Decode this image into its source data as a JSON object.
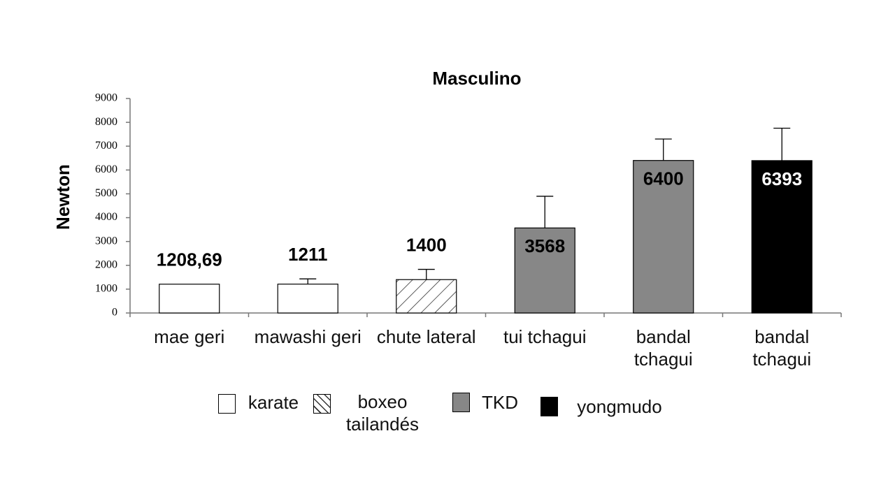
{
  "chart_data": {
    "type": "bar",
    "title": "Masculino",
    "y_label": "Newton",
    "categories": [
      "mae geri",
      "mawashi geri",
      "chute lateral",
      "tui tchagui",
      "bandal tchagui",
      "bandal tchagui"
    ],
    "series": [
      {
        "name": "karate",
        "color": "#ffffff",
        "label_position": "above",
        "label_color": "#000000",
        "values": [
          1208.69,
          1211,
          null,
          null,
          null,
          null
        ],
        "value_labels": [
          "1208,69",
          "1211",
          null,
          null,
          null,
          null
        ],
        "errors": [
          null,
          220,
          null,
          null,
          null,
          null
        ]
      },
      {
        "name": "boxeo tailandés",
        "color": "#ffffff",
        "pattern": "hatch",
        "label_position": "above",
        "label_color": "#000000",
        "values": [
          null,
          null,
          1400,
          null,
          null,
          null
        ],
        "errors": [
          null,
          null,
          430,
          null,
          null,
          null
        ]
      },
      {
        "name": "TKD",
        "color": "#878787",
        "label_position": "inside",
        "label_color": "#000000",
        "values": [
          null,
          null,
          null,
          3568,
          6400,
          null
        ],
        "errors": [
          null,
          null,
          null,
          1330,
          900,
          null
        ]
      },
      {
        "name": "yongmudo",
        "color": "#000000",
        "label_position": "inside",
        "label_color": "#ffffff",
        "values": [
          null,
          null,
          null,
          null,
          null,
          6393
        ],
        "errors": [
          null,
          null,
          null,
          null,
          null,
          1360
        ]
      }
    ],
    "ylim": [
      0,
      9000
    ],
    "yticks": [
      0,
      1000,
      2000,
      3000,
      4000,
      5000,
      6000,
      7000,
      8000,
      9000
    ],
    "grid": false
  }
}
